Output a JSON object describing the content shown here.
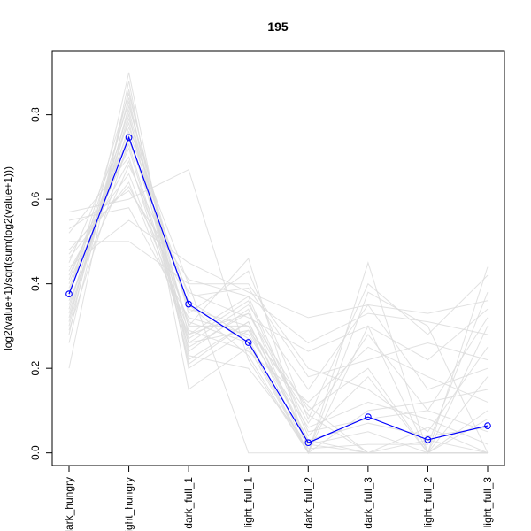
{
  "chart_data": {
    "type": "line",
    "title": "195",
    "xlabel": "",
    "ylabel": "log2(value+1)/sqrt(sum(log2(value+1)))",
    "categories": [
      "dark_hungry",
      "light_hungry",
      "dark_full_1",
      "light_full_1",
      "dark_full_2",
      "dark_full_3",
      "light_full_2",
      "light_full_3"
    ],
    "ylim": [
      -0.03,
      0.95
    ],
    "yticks": [
      0.0,
      0.2,
      0.4,
      0.6,
      0.8
    ],
    "grid": false,
    "legend": "none",
    "series": [
      {
        "values": [
          0.376,
          0.746,
          0.352,
          0.261,
          0.024,
          0.085,
          0.031,
          0.064
        ],
        "color": "#0000ff",
        "markers": "open-circle",
        "role": "highlight"
      }
    ],
    "background_lines": {
      "color": "#dcdcdc",
      "values": [
        [
          0.45,
          0.78,
          0.3,
          0.3,
          0.0,
          0.0,
          0.0,
          0.0
        ],
        [
          0.52,
          0.7,
          0.25,
          0.33,
          0.1,
          0.2,
          0.0,
          0.3
        ],
        [
          0.38,
          0.85,
          0.28,
          0.37,
          0.05,
          0.08,
          0.1,
          0.05
        ],
        [
          0.32,
          0.8,
          0.22,
          0.31,
          0.02,
          0.0,
          0.03,
          0.0
        ],
        [
          0.48,
          0.63,
          0.36,
          0.27,
          0.0,
          0.3,
          0.0,
          0.1
        ],
        [
          0.28,
          0.9,
          0.2,
          0.29,
          0.03,
          0.0,
          0.0,
          0.0
        ],
        [
          0.57,
          0.6,
          0.67,
          0.22,
          0.0,
          0.0,
          0.0,
          0.0
        ],
        [
          0.35,
          0.77,
          0.4,
          0.0,
          0.0,
          0.0,
          0.0,
          0.0
        ],
        [
          0.42,
          0.72,
          0.26,
          0.35,
          0.15,
          0.35,
          0.15,
          0.2
        ],
        [
          0.2,
          0.88,
          0.15,
          0.25,
          0.0,
          0.0,
          0.0,
          0.0
        ],
        [
          0.5,
          0.5,
          0.4,
          0.4,
          0.2,
          0.15,
          0.05,
          0.25
        ],
        [
          0.44,
          0.55,
          0.45,
          0.38,
          0.32,
          0.35,
          0.33,
          0.36
        ],
        [
          0.3,
          0.82,
          0.33,
          0.43,
          0.08,
          0.4,
          0.28,
          0.42
        ],
        [
          0.4,
          0.75,
          0.3,
          0.46,
          0.0,
          0.45,
          0.0,
          0.44
        ],
        [
          0.36,
          0.68,
          0.38,
          0.32,
          0.24,
          0.3,
          0.22,
          0.34
        ],
        [
          0.55,
          0.58,
          0.32,
          0.28,
          0.06,
          0.12,
          0.08,
          0.02
        ],
        [
          0.26,
          0.86,
          0.24,
          0.34,
          0.01,
          0.02,
          0.02,
          0.38
        ],
        [
          0.47,
          0.66,
          0.29,
          0.24,
          0.12,
          0.25,
          0.18,
          0.12
        ],
        [
          0.33,
          0.79,
          0.34,
          0.3,
          0.09,
          0.0,
          0.06,
          0.0
        ],
        [
          0.39,
          0.73,
          0.27,
          0.36,
          0.04,
          0.18,
          0.0,
          0.08
        ],
        [
          0.43,
          0.69,
          0.31,
          0.26,
          0.0,
          0.1,
          0.12,
          0.15
        ],
        [
          0.37,
          0.83,
          0.23,
          0.2,
          0.02,
          0.05,
          0.0,
          0.0
        ],
        [
          0.41,
          0.76,
          0.37,
          0.39,
          0.18,
          0.22,
          0.26,
          0.22
        ],
        [
          0.29,
          0.74,
          0.35,
          0.23,
          0.0,
          0.38,
          0.3,
          0.0
        ],
        [
          0.46,
          0.64,
          0.28,
          0.33,
          0.07,
          0.28,
          0.1,
          0.32
        ],
        [
          0.34,
          0.81,
          0.26,
          0.29,
          0.11,
          0.0,
          0.0,
          0.18
        ],
        [
          0.53,
          0.62,
          0.41,
          0.37,
          0.26,
          0.33,
          0.31,
          0.28
        ],
        [
          0.31,
          0.84,
          0.21,
          0.31,
          0.03,
          0.07,
          0.04,
          0.06
        ]
      ]
    }
  }
}
